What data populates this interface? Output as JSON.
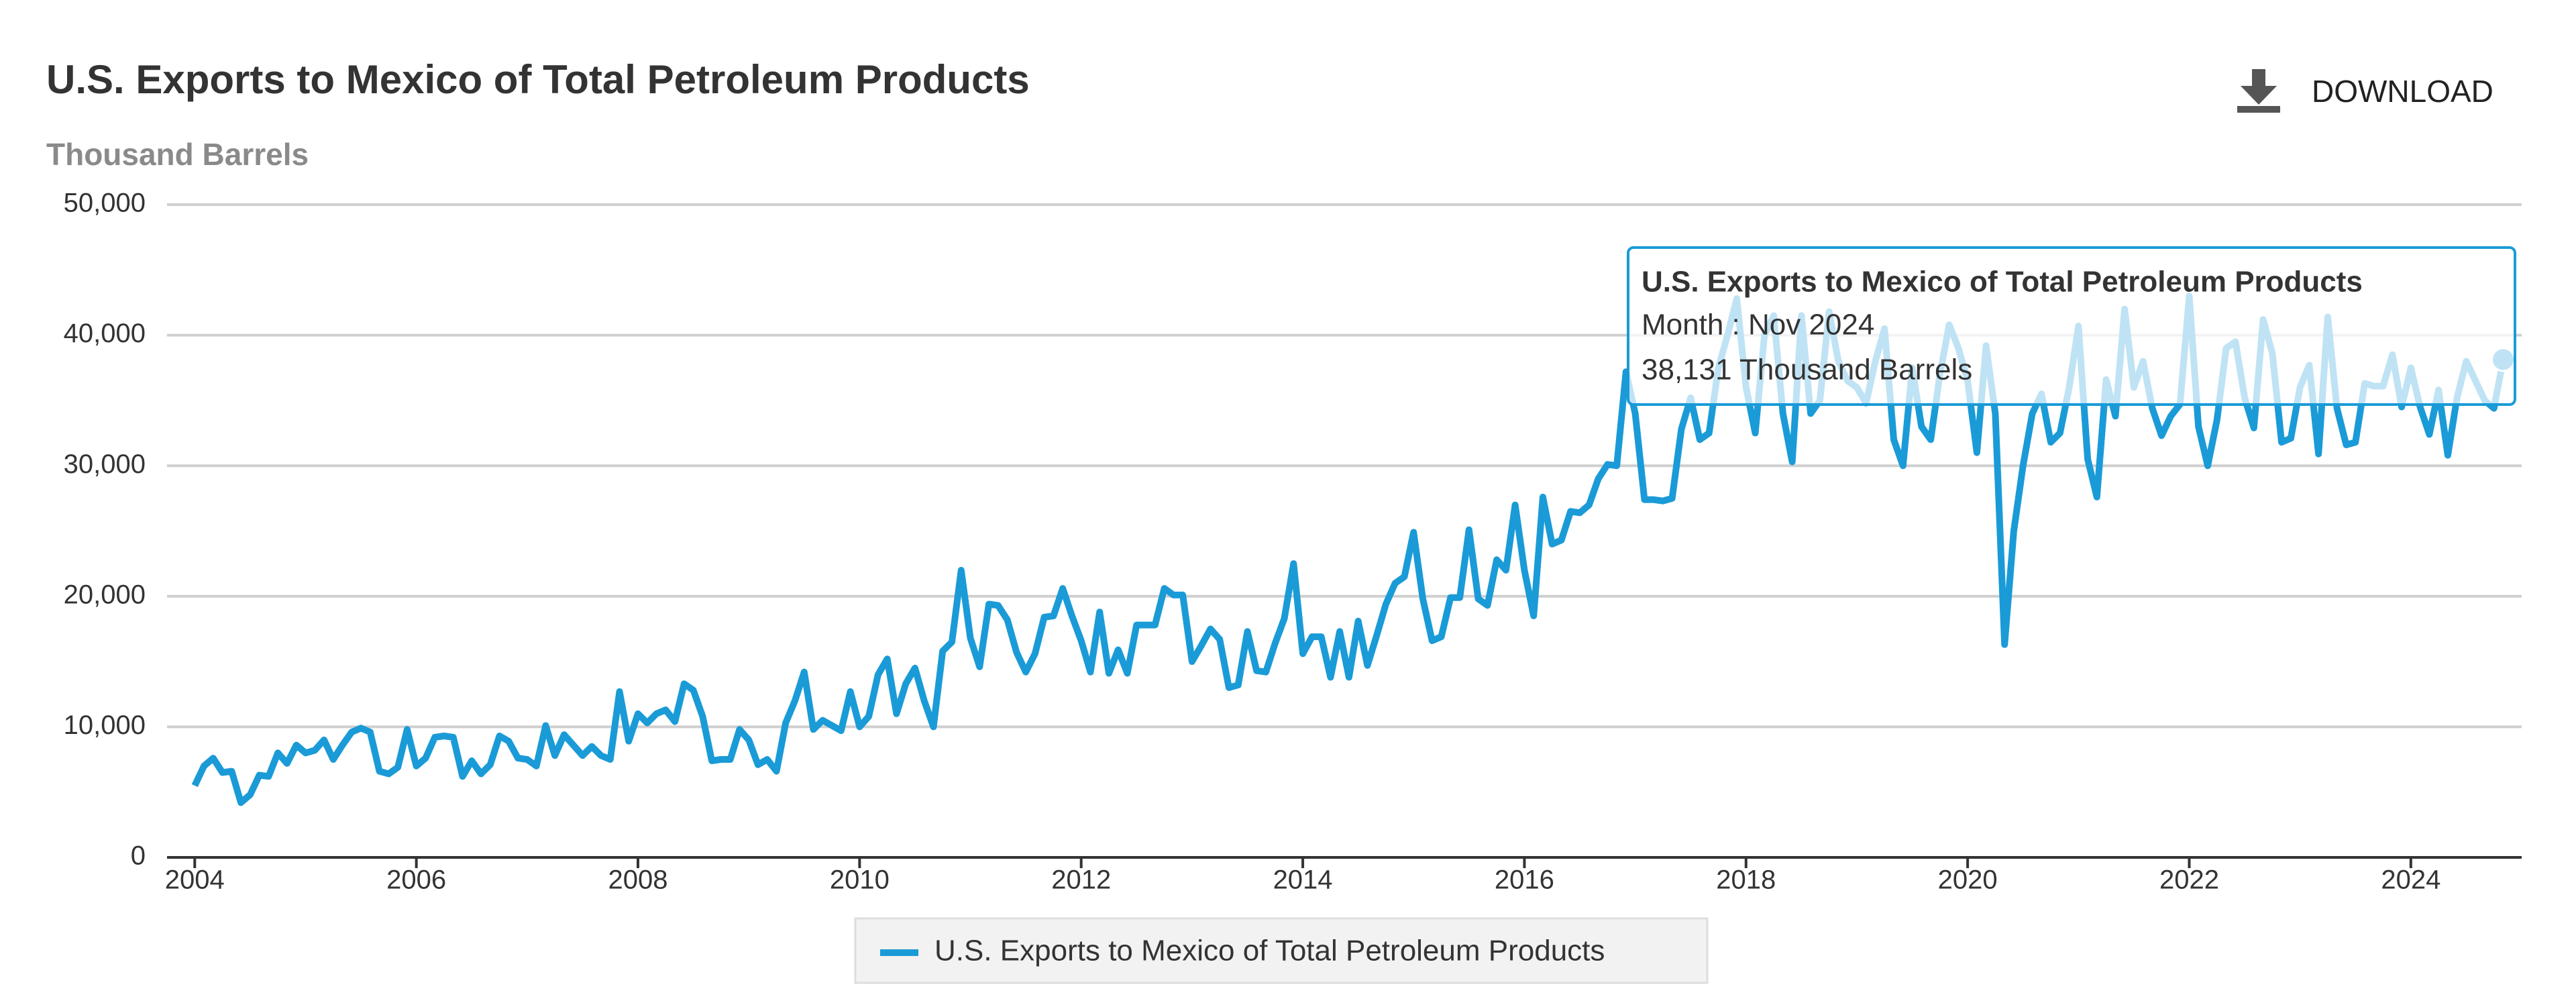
{
  "chart_data": {
    "type": "line",
    "title": "U.S. Exports to Mexico of Total Petroleum Products",
    "subtitle": "Thousand Barrels",
    "download": "DOWNLOAD",
    "series": [
      {
        "name": "U.S. Exports to Mexico of Total Petroleum Products",
        "color": "#1a9bd7",
        "x": [
          "2004-01",
          "2004-02",
          "2004-03",
          "2004-04",
          "2004-05",
          "2004-06",
          "2004-07",
          "2004-08",
          "2004-09",
          "2004-10",
          "2004-11",
          "2004-12",
          "2005-01",
          "2005-02",
          "2005-03",
          "2005-04",
          "2005-05",
          "2005-06",
          "2005-07",
          "2005-08",
          "2005-09",
          "2005-10",
          "2005-11",
          "2005-12",
          "2006-01",
          "2006-02",
          "2006-03",
          "2006-04",
          "2006-05",
          "2006-06",
          "2006-07",
          "2006-08",
          "2006-09",
          "2006-10",
          "2006-11",
          "2006-12",
          "2007-01",
          "2007-02",
          "2007-03",
          "2007-04",
          "2007-05",
          "2007-06",
          "2007-07",
          "2007-08",
          "2007-09",
          "2007-10",
          "2007-11",
          "2007-12",
          "2008-01",
          "2008-02",
          "2008-03",
          "2008-04",
          "2008-05",
          "2008-06",
          "2008-07",
          "2008-08",
          "2008-09",
          "2008-10",
          "2008-11",
          "2008-12",
          "2009-01",
          "2009-02",
          "2009-03",
          "2009-04",
          "2009-05",
          "2009-06",
          "2009-07",
          "2009-08",
          "2009-09",
          "2009-10",
          "2009-11",
          "2009-12",
          "2010-01",
          "2010-02",
          "2010-03",
          "2010-04",
          "2010-05",
          "2010-06",
          "2010-07",
          "2010-08",
          "2010-09",
          "2010-10",
          "2010-11",
          "2010-12",
          "2011-01",
          "2011-02",
          "2011-03",
          "2011-04",
          "2011-05",
          "2011-06",
          "2011-07",
          "2011-08",
          "2011-09",
          "2011-10",
          "2011-11",
          "2011-12",
          "2012-01",
          "2012-02",
          "2012-03",
          "2012-04",
          "2012-05",
          "2012-06",
          "2012-07",
          "2012-08",
          "2012-09",
          "2012-10",
          "2012-11",
          "2012-12",
          "2013-01",
          "2013-02",
          "2013-03",
          "2013-04",
          "2013-05",
          "2013-06",
          "2013-07",
          "2013-08",
          "2013-09",
          "2013-10",
          "2013-11",
          "2013-12",
          "2014-01",
          "2014-02",
          "2014-03",
          "2014-04",
          "2014-05",
          "2014-06",
          "2014-07",
          "2014-08",
          "2014-09",
          "2014-10",
          "2014-11",
          "2014-12",
          "2015-01",
          "2015-02",
          "2015-03",
          "2015-04",
          "2015-05",
          "2015-06",
          "2015-07",
          "2015-08",
          "2015-09",
          "2015-10",
          "2015-11",
          "2015-12",
          "2016-01",
          "2016-02",
          "2016-03",
          "2016-04",
          "2016-05",
          "2016-06",
          "2016-07",
          "2016-08",
          "2016-09",
          "2016-10",
          "2016-11",
          "2016-12",
          "2017-01",
          "2017-02",
          "2017-03",
          "2017-04",
          "2017-05",
          "2017-06",
          "2017-07",
          "2017-08",
          "2017-09",
          "2017-10",
          "2017-11",
          "2017-12",
          "2018-01",
          "2018-02",
          "2018-03",
          "2018-04",
          "2018-05",
          "2018-06",
          "2018-07",
          "2018-08",
          "2018-09",
          "2018-10",
          "2018-11",
          "2018-12",
          "2019-01",
          "2019-02",
          "2019-03",
          "2019-04",
          "2019-05",
          "2019-06",
          "2019-07",
          "2019-08",
          "2019-09",
          "2019-10",
          "2019-11",
          "2019-12",
          "2020-01",
          "2020-02",
          "2020-03",
          "2020-04",
          "2020-05",
          "2020-06",
          "2020-07",
          "2020-08",
          "2020-09",
          "2020-10",
          "2020-11",
          "2020-12",
          "2021-01",
          "2021-02",
          "2021-03",
          "2021-04",
          "2021-05",
          "2021-06",
          "2021-07",
          "2021-08",
          "2021-09",
          "2021-10",
          "2021-11",
          "2021-12",
          "2022-01",
          "2022-02",
          "2022-03",
          "2022-04",
          "2022-05",
          "2022-06",
          "2022-07",
          "2022-08",
          "2022-09",
          "2022-10",
          "2022-11",
          "2022-12",
          "2023-01",
          "2023-02",
          "2023-03",
          "2023-04",
          "2023-05",
          "2023-06",
          "2023-07",
          "2023-08",
          "2023-09",
          "2023-10",
          "2023-11",
          "2023-12",
          "2024-01",
          "2024-02",
          "2024-03",
          "2024-04",
          "2024-05",
          "2024-06",
          "2024-07",
          "2024-08",
          "2024-09",
          "2024-10",
          "2024-11"
        ],
        "values": [
          5500,
          7000,
          7600,
          6500,
          6600,
          4200,
          4800,
          6300,
          6200,
          8000,
          7200,
          8600,
          8000,
          8200,
          9000,
          7500,
          8600,
          9600,
          9900,
          9600,
          6600,
          6400,
          6900,
          9800,
          7000,
          7600,
          9200,
          9300,
          9200,
          6200,
          7400,
          6400,
          7100,
          9300,
          8900,
          7600,
          7500,
          7000,
          10100,
          7800,
          9400,
          8600,
          7800,
          8500,
          7800,
          7500,
          12700,
          8900,
          11000,
          10300,
          11000,
          11300,
          10400,
          13300,
          12800,
          10800,
          7400,
          7500,
          7500,
          9800,
          9000,
          7100,
          7500,
          6600,
          10300,
          12000,
          14200,
          9800,
          10500,
          10100,
          9700,
          12700,
          10000,
          10800,
          14000,
          15200,
          11000,
          13300,
          14500,
          12000,
          10000,
          15800,
          16500,
          22000,
          16800,
          14600,
          19400,
          19300,
          18200,
          15700,
          14200,
          15600,
          18400,
          18500,
          20600,
          18500,
          16600,
          14200,
          18800,
          14100,
          15900,
          14100,
          17800,
          17800,
          17800,
          20600,
          20100,
          20100,
          15000,
          16200,
          17500,
          16700,
          13000,
          13200,
          17300,
          14300,
          14200,
          16400,
          18300,
          22500,
          15600,
          16900,
          16900,
          13800,
          17300,
          13800,
          18100,
          14700,
          17000,
          19400,
          21000,
          21500,
          24900,
          19800,
          16600,
          16900,
          19900,
          19900,
          25100,
          19800,
          19300,
          22800,
          22000,
          27000,
          22000,
          18500,
          27600,
          24000,
          24300,
          26500,
          26400,
          27000,
          29000,
          30100,
          30000,
          37200,
          34000,
          27400,
          27400,
          27300,
          27500,
          32800,
          35200,
          32000,
          32500,
          37500,
          40000,
          42800,
          36000,
          32500,
          40000,
          41500,
          34000,
          30300,
          41500,
          34000,
          35000,
          41800,
          38000,
          36500,
          36000,
          34800,
          38000,
          40500,
          32000,
          30000,
          37500,
          33000,
          32000,
          37000,
          40800,
          39000,
          36500,
          31000,
          39200,
          34000,
          16300,
          25000,
          30000,
          34000,
          35500,
          31800,
          32500,
          36000,
          40700,
          30500,
          27600,
          36600,
          33800,
          42000,
          36000,
          38000,
          34400,
          32300,
          33800,
          34700,
          43000,
          33000,
          30000,
          33500,
          39000,
          39500,
          35200,
          32900,
          41200,
          38600,
          31800,
          32100,
          36000,
          37700,
          30900,
          41400,
          34400,
          31600,
          31800,
          36300,
          36100,
          36100,
          38500,
          34500,
          37500,
          34500,
          32400,
          35800,
          30800,
          35200,
          38000,
          36500,
          35000,
          34400,
          38131
        ]
      }
    ],
    "xlim": [
      "2003-10",
      "2025-01"
    ],
    "xticks": [
      "2004",
      "2006",
      "2008",
      "2010",
      "2012",
      "2014",
      "2016",
      "2018",
      "2020",
      "2022",
      "2024"
    ],
    "ylim": [
      0,
      50000
    ],
    "yticks": [
      0,
      {
        "value": 10000,
        "label": "10,000"
      },
      {
        "value": 20000,
        "label": "20,000"
      },
      {
        "value": 30000,
        "label": "30,000"
      },
      {
        "value": 40000,
        "label": "40,000"
      },
      {
        "value": 50000,
        "label": "50,000"
      }
    ],
    "grid": true,
    "tooltip": {
      "title": "U.S. Exports to Mexico of Total Petroleum Products",
      "lines": [
        "Month : Nov 2024",
        "38,131 Thousand Barrels"
      ]
    }
  }
}
